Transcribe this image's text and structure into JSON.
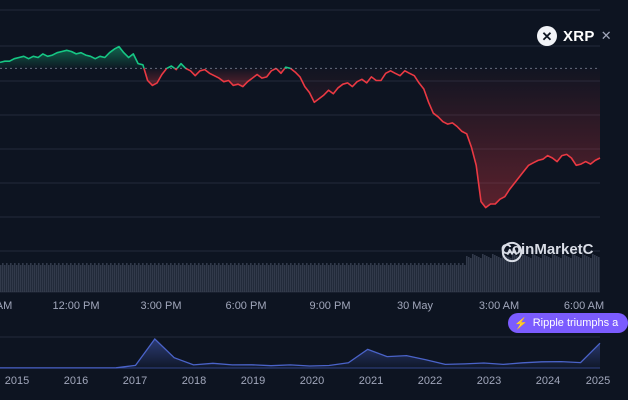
{
  "coin": {
    "symbol": "XRP",
    "logo_icon": "xrp-logo-icon",
    "close_icon": "close-icon"
  },
  "watermark": {
    "text": "CoinMarketC",
    "logo_icon": "coinmarketcap-logo-icon"
  },
  "news": {
    "text": "Ripple triumphs a",
    "icon": "lightning-bolt-icon"
  },
  "colors": {
    "background": "#0d1421",
    "up": "#16c784",
    "down": "#ea3943",
    "grid": "#222a3a",
    "volume": "#3a4152",
    "history": "#4a63c9",
    "accent": "#7b5cff"
  },
  "chart_data": [
    {
      "type": "line",
      "title": "",
      "xlabel": "",
      "ylabel": "",
      "x_ticks": [
        "AM",
        "12:00 PM",
        "3:00 PM",
        "6:00 PM",
        "9:00 PM",
        "30 May",
        "3:00 AM",
        "6:00 AM"
      ],
      "baseline_index": 58,
      "grid": true,
      "series": [
        {
          "values": [
            1.55,
            1.56,
            1.56,
            1.58,
            1.59,
            1.6,
            1.58,
            1.6,
            1.59,
            1.62,
            1.6,
            1.61,
            1.63,
            1.64,
            1.65,
            1.64,
            1.62,
            1.63,
            1.61,
            1.6,
            1.58,
            1.6,
            1.59,
            1.63,
            1.66,
            1.68,
            1.63,
            1.59,
            1.62,
            1.54,
            1.53,
            1.4,
            1.36,
            1.38,
            1.45,
            1.5,
            1.52,
            1.49,
            1.54,
            1.5,
            1.48,
            1.44,
            1.48,
            1.49,
            1.46,
            1.44,
            1.42,
            1.39,
            1.4,
            1.36,
            1.37,
            1.35,
            1.39,
            1.42,
            1.45,
            1.42,
            1.43,
            1.48,
            1.5,
            1.46,
            1.51,
            1.5,
            1.47,
            1.43,
            1.35,
            1.3,
            1.22,
            1.25,
            1.28,
            1.32,
            1.29,
            1.34,
            1.37,
            1.38,
            1.35,
            1.39,
            1.41,
            1.38,
            1.43,
            1.4,
            1.4,
            1.46,
            1.48,
            1.46,
            1.44,
            1.48,
            1.46,
            1.44,
            1.38,
            1.33,
            1.22,
            1.13,
            1.1,
            1.06,
            1.04,
            1.05,
            1.02,
            0.98,
            0.96,
            0.85,
            0.7,
            0.4,
            0.35,
            0.38,
            0.38,
            0.42,
            0.44,
            0.5,
            0.55,
            0.6,
            0.65,
            0.7,
            0.72,
            0.74,
            0.75,
            0.78,
            0.76,
            0.73,
            0.78,
            0.79,
            0.76,
            0.7,
            0.71,
            0.73,
            0.71,
            0.74,
            0.76
          ]
        }
      ]
    },
    {
      "type": "area",
      "title": "",
      "x_ticks": [
        "2015",
        "2016",
        "2017",
        "2018",
        "2019",
        "2020",
        "2021",
        "2022",
        "2023",
        "2024",
        "2025"
      ],
      "series": [
        {
          "values": [
            0.01,
            0.01,
            0.01,
            0.006,
            0.006,
            0.008,
            0.02,
            0.25,
            2.8,
            1.0,
            0.3,
            0.45,
            0.3,
            0.31,
            0.22,
            0.3,
            0.19,
            0.24,
            0.5,
            1.8,
            1.1,
            1.2,
            0.8,
            0.35,
            0.4,
            0.48,
            0.35,
            0.5,
            0.6,
            0.62,
            0.52,
            2.4
          ]
        }
      ]
    }
  ]
}
